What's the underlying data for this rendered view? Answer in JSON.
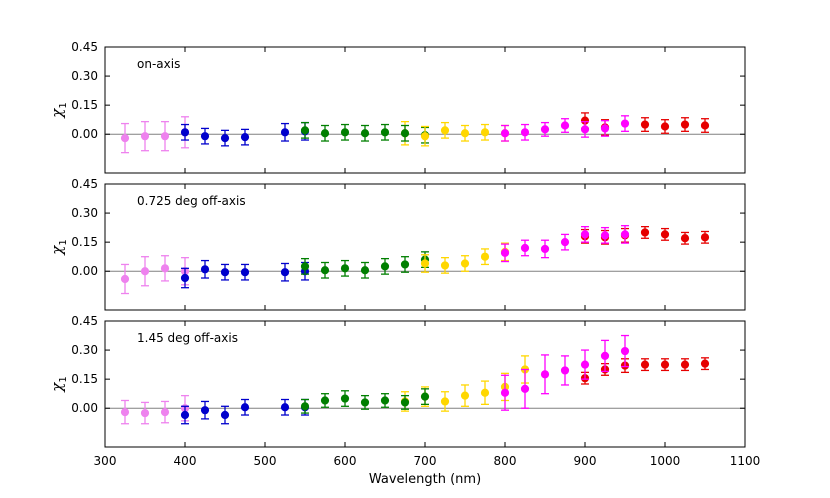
{
  "chart_data": {
    "type": "scatter",
    "xlabel": "Wavelength (nm)",
    "xlim": [
      300,
      1100
    ],
    "xticks": [
      "300",
      "400",
      "500",
      "600",
      "700",
      "800",
      "900",
      "1000",
      "1100"
    ],
    "ylabel": "χ",
    "ylabel_subscript": "1",
    "grid": false,
    "baseline_y": 0.0,
    "series_colors": {
      "violet": "#ee82ee",
      "blue": "#0000cc",
      "green": "#007f00",
      "gold": "#ffd700",
      "magenta": "#ff00ff",
      "red": "#e60000"
    },
    "panels": [
      {
        "annotation": "on-axis",
        "ylim": [
          -0.2,
          0.45
        ],
        "yticks": [
          "0.45",
          "0.30",
          "0.15",
          "0.00"
        ],
        "points": [
          {
            "x": 325,
            "y": -0.02,
            "err": 0.075,
            "color": "violet"
          },
          {
            "x": 350,
            "y": -0.01,
            "err": 0.075,
            "color": "violet"
          },
          {
            "x": 375,
            "y": -0.01,
            "err": 0.075,
            "color": "violet"
          },
          {
            "x": 400,
            "y": 0.01,
            "err": 0.08,
            "color": "violet"
          },
          {
            "x": 400,
            "y": 0.01,
            "err": 0.04,
            "color": "blue"
          },
          {
            "x": 425,
            "y": -0.01,
            "err": 0.04,
            "color": "blue"
          },
          {
            "x": 450,
            "y": -0.02,
            "err": 0.04,
            "color": "blue"
          },
          {
            "x": 475,
            "y": -0.015,
            "err": 0.04,
            "color": "blue"
          },
          {
            "x": 525,
            "y": 0.01,
            "err": 0.045,
            "color": "blue"
          },
          {
            "x": 550,
            "y": 0.015,
            "err": 0.045,
            "color": "blue"
          },
          {
            "x": 550,
            "y": 0.02,
            "err": 0.04,
            "color": "green"
          },
          {
            "x": 575,
            "y": 0.005,
            "err": 0.04,
            "color": "green"
          },
          {
            "x": 600,
            "y": 0.01,
            "err": 0.04,
            "color": "green"
          },
          {
            "x": 625,
            "y": 0.005,
            "err": 0.04,
            "color": "green"
          },
          {
            "x": 650,
            "y": 0.01,
            "err": 0.04,
            "color": "green"
          },
          {
            "x": 675,
            "y": 0.005,
            "err": 0.06,
            "color": "gold"
          },
          {
            "x": 675,
            "y": 0.005,
            "err": 0.04,
            "color": "green"
          },
          {
            "x": 700,
            "y": -0.005,
            "err": 0.04,
            "color": "green"
          },
          {
            "x": 700,
            "y": -0.01,
            "err": 0.05,
            "color": "gold"
          },
          {
            "x": 725,
            "y": 0.02,
            "err": 0.04,
            "color": "gold"
          },
          {
            "x": 750,
            "y": 0.005,
            "err": 0.04,
            "color": "gold"
          },
          {
            "x": 775,
            "y": 0.01,
            "err": 0.04,
            "color": "gold"
          },
          {
            "x": 800,
            "y": 0.005,
            "err": 0.04,
            "color": "gold"
          },
          {
            "x": 800,
            "y": 0.005,
            "err": 0.04,
            "color": "magenta"
          },
          {
            "x": 825,
            "y": 0.01,
            "err": 0.04,
            "color": "magenta"
          },
          {
            "x": 850,
            "y": 0.025,
            "err": 0.035,
            "color": "magenta"
          },
          {
            "x": 875,
            "y": 0.045,
            "err": 0.035,
            "color": "magenta"
          },
          {
            "x": 900,
            "y": 0.07,
            "err": 0.04,
            "color": "red"
          },
          {
            "x": 900,
            "y": 0.025,
            "err": 0.04,
            "color": "magenta"
          },
          {
            "x": 925,
            "y": 0.035,
            "err": 0.04,
            "color": "red"
          },
          {
            "x": 925,
            "y": 0.03,
            "err": 0.04,
            "color": "magenta"
          },
          {
            "x": 950,
            "y": 0.055,
            "err": 0.04,
            "color": "magenta"
          },
          {
            "x": 975,
            "y": 0.05,
            "err": 0.035,
            "color": "red"
          },
          {
            "x": 1000,
            "y": 0.04,
            "err": 0.035,
            "color": "red"
          },
          {
            "x": 1025,
            "y": 0.05,
            "err": 0.035,
            "color": "red"
          },
          {
            "x": 1050,
            "y": 0.045,
            "err": 0.035,
            "color": "red"
          }
        ]
      },
      {
        "annotation": "0.725 deg off-axis",
        "ylim": [
          -0.2,
          0.45
        ],
        "yticks": [
          "0.45",
          "0.30",
          "0.15",
          "0.00"
        ],
        "points": [
          {
            "x": 325,
            "y": -0.04,
            "err": 0.075,
            "color": "violet"
          },
          {
            "x": 350,
            "y": 0.0,
            "err": 0.075,
            "color": "violet"
          },
          {
            "x": 375,
            "y": 0.015,
            "err": 0.065,
            "color": "violet"
          },
          {
            "x": 400,
            "y": 0.0,
            "err": 0.07,
            "color": "violet"
          },
          {
            "x": 400,
            "y": -0.035,
            "err": 0.05,
            "color": "blue"
          },
          {
            "x": 425,
            "y": 0.01,
            "err": 0.045,
            "color": "blue"
          },
          {
            "x": 450,
            "y": -0.005,
            "err": 0.04,
            "color": "blue"
          },
          {
            "x": 475,
            "y": -0.005,
            "err": 0.04,
            "color": "blue"
          },
          {
            "x": 525,
            "y": -0.005,
            "err": 0.045,
            "color": "blue"
          },
          {
            "x": 550,
            "y": 0.0,
            "err": 0.045,
            "color": "blue"
          },
          {
            "x": 550,
            "y": 0.025,
            "err": 0.04,
            "color": "green"
          },
          {
            "x": 575,
            "y": 0.005,
            "err": 0.04,
            "color": "green"
          },
          {
            "x": 600,
            "y": 0.015,
            "err": 0.04,
            "color": "green"
          },
          {
            "x": 625,
            "y": 0.005,
            "err": 0.04,
            "color": "green"
          },
          {
            "x": 650,
            "y": 0.025,
            "err": 0.04,
            "color": "green"
          },
          {
            "x": 675,
            "y": 0.035,
            "err": 0.04,
            "color": "green"
          },
          {
            "x": 700,
            "y": 0.06,
            "err": 0.04,
            "color": "green"
          },
          {
            "x": 700,
            "y": 0.04,
            "err": 0.045,
            "color": "gold"
          },
          {
            "x": 725,
            "y": 0.03,
            "err": 0.04,
            "color": "gold"
          },
          {
            "x": 750,
            "y": 0.04,
            "err": 0.04,
            "color": "gold"
          },
          {
            "x": 775,
            "y": 0.075,
            "err": 0.04,
            "color": "gold"
          },
          {
            "x": 800,
            "y": 0.1,
            "err": 0.045,
            "color": "gold"
          },
          {
            "x": 800,
            "y": 0.095,
            "err": 0.045,
            "color": "magenta"
          },
          {
            "x": 825,
            "y": 0.12,
            "err": 0.04,
            "color": "magenta"
          },
          {
            "x": 850,
            "y": 0.115,
            "err": 0.045,
            "color": "magenta"
          },
          {
            "x": 875,
            "y": 0.15,
            "err": 0.04,
            "color": "magenta"
          },
          {
            "x": 900,
            "y": 0.18,
            "err": 0.035,
            "color": "red"
          },
          {
            "x": 900,
            "y": 0.19,
            "err": 0.04,
            "color": "magenta"
          },
          {
            "x": 925,
            "y": 0.175,
            "err": 0.035,
            "color": "red"
          },
          {
            "x": 925,
            "y": 0.185,
            "err": 0.04,
            "color": "magenta"
          },
          {
            "x": 950,
            "y": 0.185,
            "err": 0.035,
            "color": "red"
          },
          {
            "x": 950,
            "y": 0.19,
            "err": 0.045,
            "color": "magenta"
          },
          {
            "x": 975,
            "y": 0.2,
            "err": 0.03,
            "color": "red"
          },
          {
            "x": 1000,
            "y": 0.19,
            "err": 0.03,
            "color": "red"
          },
          {
            "x": 1025,
            "y": 0.17,
            "err": 0.03,
            "color": "red"
          },
          {
            "x": 1050,
            "y": 0.175,
            "err": 0.03,
            "color": "red"
          }
        ]
      },
      {
        "annotation": "1.45 deg off-axis",
        "ylim": [
          -0.2,
          0.45
        ],
        "yticks": [
          "0.45",
          "0.30",
          "0.15",
          "0.00"
        ],
        "points": [
          {
            "x": 325,
            "y": -0.02,
            "err": 0.06,
            "color": "violet"
          },
          {
            "x": 350,
            "y": -0.025,
            "err": 0.055,
            "color": "violet"
          },
          {
            "x": 375,
            "y": -0.02,
            "err": 0.055,
            "color": "violet"
          },
          {
            "x": 400,
            "y": 0.0,
            "err": 0.065,
            "color": "violet"
          },
          {
            "x": 400,
            "y": -0.035,
            "err": 0.045,
            "color": "blue"
          },
          {
            "x": 425,
            "y": -0.01,
            "err": 0.045,
            "color": "blue"
          },
          {
            "x": 450,
            "y": -0.035,
            "err": 0.045,
            "color": "blue"
          },
          {
            "x": 475,
            "y": 0.005,
            "err": 0.04,
            "color": "blue"
          },
          {
            "x": 525,
            "y": 0.005,
            "err": 0.04,
            "color": "blue"
          },
          {
            "x": 550,
            "y": 0.005,
            "err": 0.04,
            "color": "blue"
          },
          {
            "x": 550,
            "y": 0.01,
            "err": 0.035,
            "color": "green"
          },
          {
            "x": 575,
            "y": 0.04,
            "err": 0.035,
            "color": "green"
          },
          {
            "x": 600,
            "y": 0.05,
            "err": 0.04,
            "color": "green"
          },
          {
            "x": 625,
            "y": 0.03,
            "err": 0.035,
            "color": "green"
          },
          {
            "x": 650,
            "y": 0.04,
            "err": 0.035,
            "color": "green"
          },
          {
            "x": 675,
            "y": 0.035,
            "err": 0.05,
            "color": "gold"
          },
          {
            "x": 675,
            "y": 0.03,
            "err": 0.035,
            "color": "green"
          },
          {
            "x": 700,
            "y": 0.06,
            "err": 0.05,
            "color": "gold"
          },
          {
            "x": 700,
            "y": 0.06,
            "err": 0.04,
            "color": "green"
          },
          {
            "x": 725,
            "y": 0.035,
            "err": 0.05,
            "color": "gold"
          },
          {
            "x": 750,
            "y": 0.065,
            "err": 0.055,
            "color": "gold"
          },
          {
            "x": 775,
            "y": 0.08,
            "err": 0.06,
            "color": "gold"
          },
          {
            "x": 800,
            "y": 0.11,
            "err": 0.07,
            "color": "gold"
          },
          {
            "x": 800,
            "y": 0.08,
            "err": 0.09,
            "color": "magenta"
          },
          {
            "x": 825,
            "y": 0.2,
            "err": 0.07,
            "color": "gold"
          },
          {
            "x": 825,
            "y": 0.1,
            "err": 0.1,
            "color": "magenta"
          },
          {
            "x": 850,
            "y": 0.175,
            "err": 0.1,
            "color": "magenta"
          },
          {
            "x": 875,
            "y": 0.195,
            "err": 0.075,
            "color": "magenta"
          },
          {
            "x": 900,
            "y": 0.155,
            "err": 0.03,
            "color": "red"
          },
          {
            "x": 900,
            "y": 0.225,
            "err": 0.075,
            "color": "magenta"
          },
          {
            "x": 925,
            "y": 0.2,
            "err": 0.03,
            "color": "red"
          },
          {
            "x": 925,
            "y": 0.27,
            "err": 0.08,
            "color": "magenta"
          },
          {
            "x": 950,
            "y": 0.22,
            "err": 0.035,
            "color": "red"
          },
          {
            "x": 950,
            "y": 0.295,
            "err": 0.08,
            "color": "magenta"
          },
          {
            "x": 975,
            "y": 0.225,
            "err": 0.03,
            "color": "red"
          },
          {
            "x": 1000,
            "y": 0.225,
            "err": 0.03,
            "color": "red"
          },
          {
            "x": 1025,
            "y": 0.225,
            "err": 0.03,
            "color": "red"
          },
          {
            "x": 1050,
            "y": 0.23,
            "err": 0.03,
            "color": "red"
          }
        ]
      }
    ]
  }
}
